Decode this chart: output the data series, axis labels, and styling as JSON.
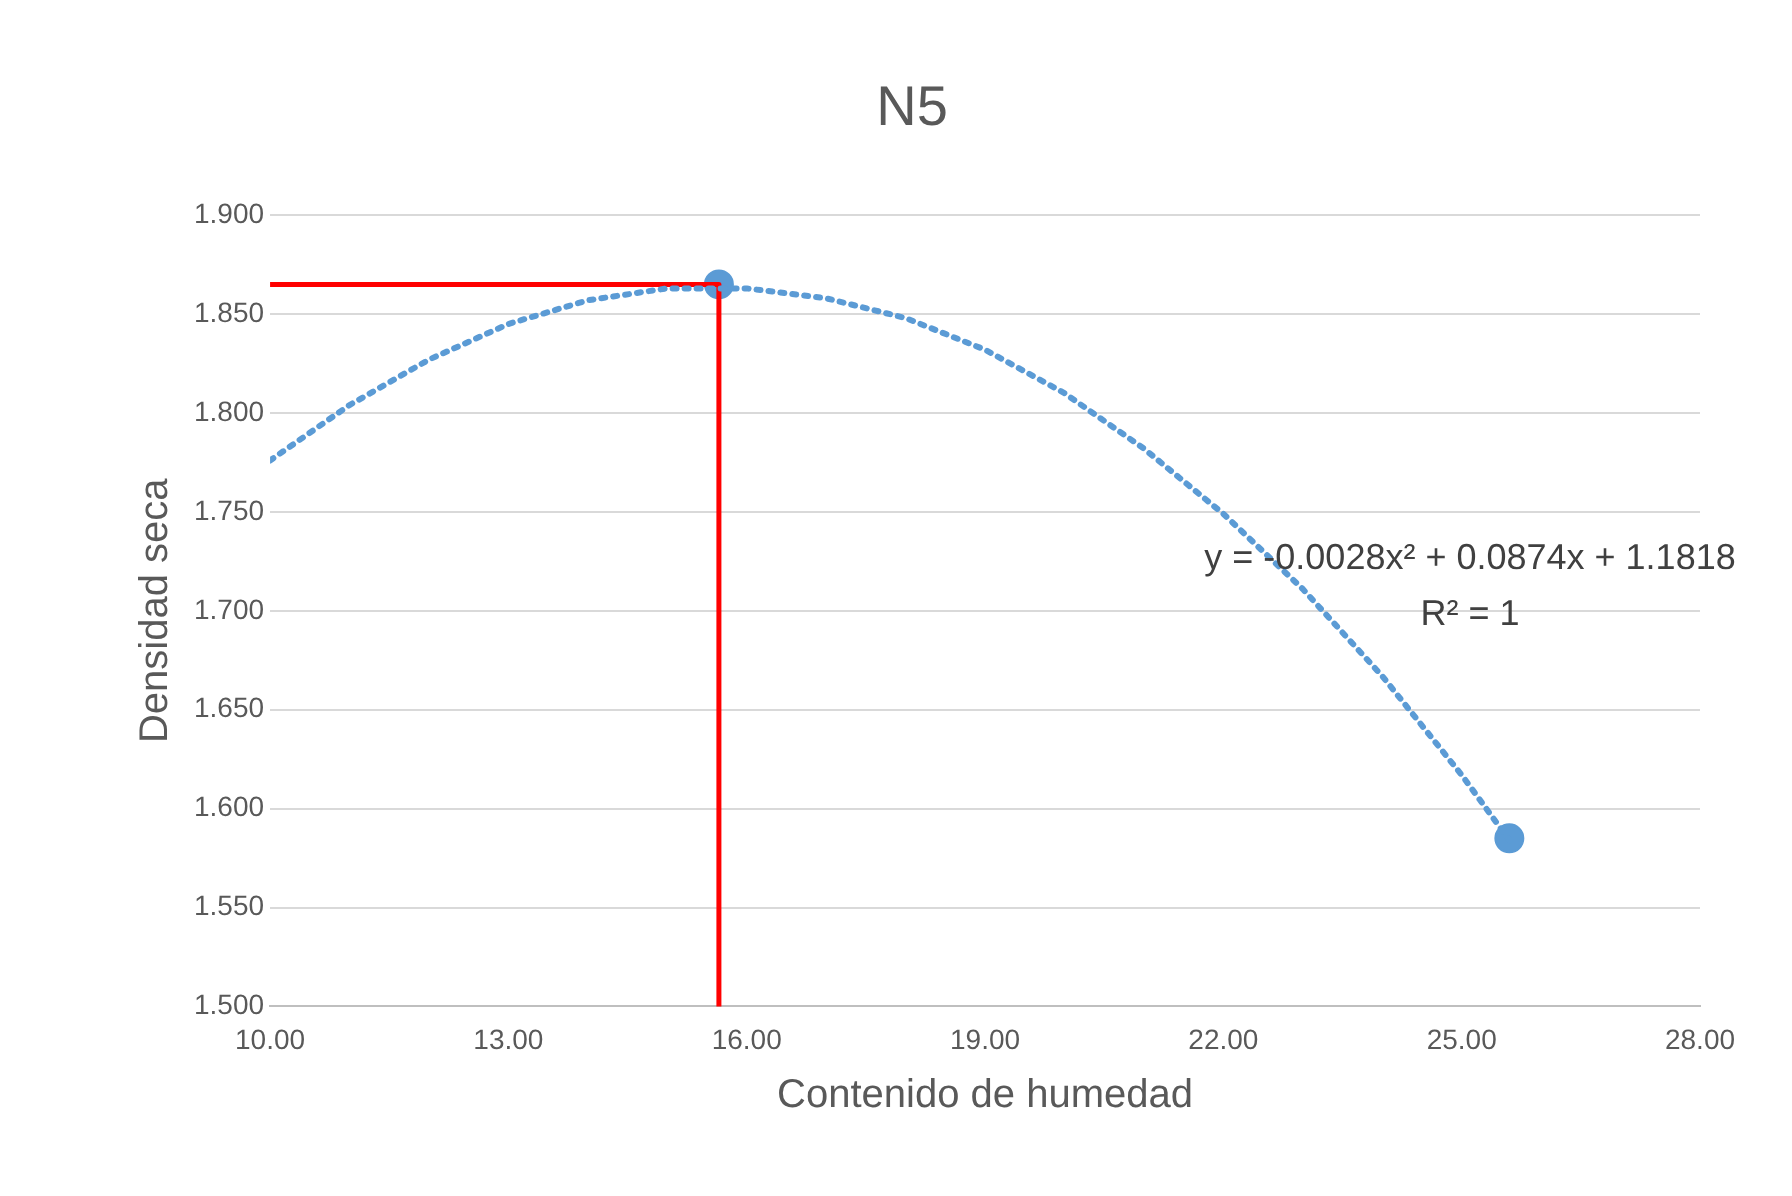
{
  "chart_data": {
    "type": "scatter",
    "title": "N5",
    "xlabel": "Contenido de humedad",
    "ylabel": "Densidad seca",
    "xlim": [
      10,
      28
    ],
    "xticks": [
      {
        "value": 10,
        "label": "10.00"
      },
      {
        "value": 13,
        "label": "13.00"
      },
      {
        "value": 16,
        "label": "16.00"
      },
      {
        "value": 19,
        "label": "19.00"
      },
      {
        "value": 22,
        "label": "22.00"
      },
      {
        "value": 25,
        "label": "25.00"
      },
      {
        "value": 28,
        "label": "28.00"
      }
    ],
    "ylim": [
      1.5,
      1.9
    ],
    "yticks": [
      {
        "value": 1.5,
        "label": "1.500"
      },
      {
        "value": 1.55,
        "label": "1.550"
      },
      {
        "value": 1.6,
        "label": "1.600"
      },
      {
        "value": 1.65,
        "label": "1.650"
      },
      {
        "value": 1.7,
        "label": "1.700"
      },
      {
        "value": 1.75,
        "label": "1.750"
      },
      {
        "value": 1.8,
        "label": "1.800"
      },
      {
        "value": 1.85,
        "label": "1.850"
      },
      {
        "value": 1.9,
        "label": "1.900"
      }
    ],
    "grid": "y",
    "legend": false,
    "series": [
      {
        "type": "line",
        "color": "#5b9bd5",
        "line_style": "dotted",
        "marker": "none",
        "x": [
          10,
          11,
          12,
          13,
          14,
          15,
          16,
          17,
          18,
          19,
          20,
          21,
          22,
          23,
          24,
          25,
          25.6
        ],
        "values": [
          1.776,
          1.804,
          1.827,
          1.845,
          1.857,
          1.863,
          1.863,
          1.858,
          1.848,
          1.832,
          1.81,
          1.782,
          1.749,
          1.711,
          1.667,
          1.617,
          1.584
        ]
      },
      {
        "type": "line",
        "color": "#ff0000",
        "line_style": "solid",
        "marker": "none",
        "x": [
          10,
          15.65,
          15.65
        ],
        "values": [
          1.865,
          1.865,
          1.5
        ]
      },
      {
        "type": "scatter",
        "color": "#5b9bd5",
        "marker": "circle",
        "x": [
          15.65,
          25.6
        ],
        "values": [
          1.865,
          1.585
        ]
      }
    ],
    "annotations": [
      "y = -0.0028x² + 0.0874x + 1.1818",
      "R² = 1"
    ]
  }
}
